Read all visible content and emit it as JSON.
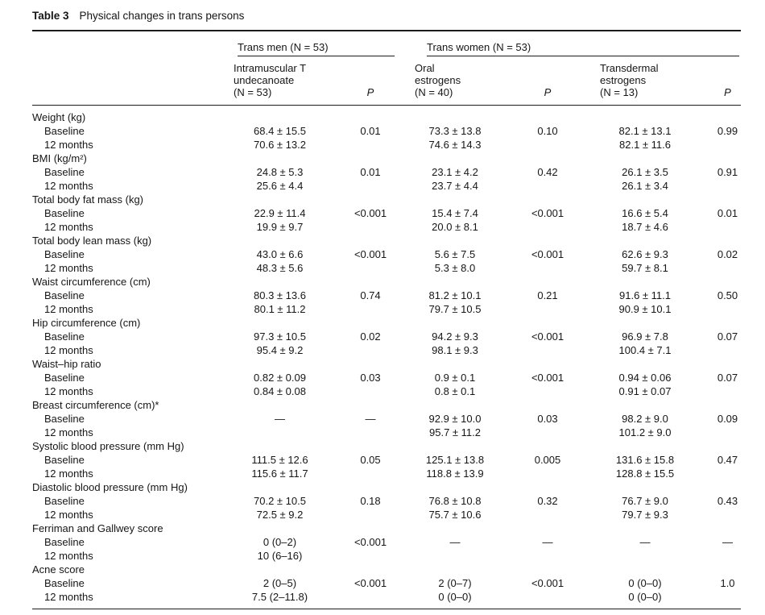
{
  "title": {
    "label": "Table 3",
    "caption": "Physical changes in trans persons"
  },
  "table": {
    "groups": [
      {
        "label": "Trans men (N = 53)"
      },
      {
        "label": "Trans women (N = 53)"
      }
    ],
    "columns": [
      {
        "lines": [
          "Intramuscular T",
          "undecanoate",
          "(N = 53)"
        ]
      },
      {
        "label": "P"
      },
      {
        "lines": [
          "Oral",
          "estrogens",
          "(N = 40)"
        ]
      },
      {
        "label": "P"
      },
      {
        "lines": [
          "Transdermal",
          "estrogens",
          "(N = 13)"
        ]
      },
      {
        "label": "P"
      }
    ],
    "sections": [
      {
        "label": "Weight (kg)",
        "rows": [
          {
            "label": "Baseline",
            "values": [
              "68.4 ± 15.5",
              "0.01",
              "73.3 ± 13.8",
              "0.10",
              "82.1 ± 13.1",
              "0.99"
            ]
          },
          {
            "label": "12 months",
            "values": [
              "70.6 ± 13.2",
              "",
              "74.6 ± 14.3",
              "",
              "82.1 ± 11.6",
              ""
            ]
          }
        ]
      },
      {
        "label": "BMI (kg/m²)",
        "rows": [
          {
            "label": "Baseline",
            "values": [
              "24.8 ± 5.3",
              "0.01",
              "23.1 ± 4.2",
              "0.42",
              "26.1 ± 3.5",
              "0.91"
            ]
          },
          {
            "label": "12 months",
            "values": [
              "25.6 ± 4.4",
              "",
              "23.7 ± 4.4",
              "",
              "26.1 ± 3.4",
              ""
            ]
          }
        ]
      },
      {
        "label": "Total body fat mass (kg)",
        "rows": [
          {
            "label": "Baseline",
            "values": [
              "22.9 ± 11.4",
              "<0.001",
              "15.4 ± 7.4",
              "<0.001",
              "16.6 ± 5.4",
              "0.01"
            ]
          },
          {
            "label": "12 months",
            "values": [
              "19.9 ± 9.7",
              "",
              "20.0 ± 8.1",
              "",
              "18.7 ± 4.6",
              ""
            ]
          }
        ]
      },
      {
        "label": "Total body lean mass (kg)",
        "rows": [
          {
            "label": "Baseline",
            "values": [
              "43.0 ± 6.6",
              "<0.001",
              "5.6 ± 7.5",
              "<0.001",
              "62.6 ± 9.3",
              "0.02"
            ]
          },
          {
            "label": "12 months",
            "values": [
              "48.3 ± 5.6",
              "",
              "5.3 ± 8.0",
              "",
              "59.7 ± 8.1",
              ""
            ]
          }
        ]
      },
      {
        "label": "Waist circumference (cm)",
        "rows": [
          {
            "label": "Baseline",
            "values": [
              "80.3 ± 13.6",
              "0.74",
              "81.2 ± 10.1",
              "0.21",
              "91.6 ± 11.1",
              "0.50"
            ]
          },
          {
            "label": "12 months",
            "values": [
              "80.1 ± 11.2",
              "",
              "79.7 ± 10.5",
              "",
              "90.9 ± 10.1",
              ""
            ]
          }
        ]
      },
      {
        "label": "Hip circumference (cm)",
        "rows": [
          {
            "label": "Baseline",
            "values": [
              "97.3 ± 10.5",
              "0.02",
              "94.2 ± 9.3",
              "<0.001",
              "96.9 ± 7.8",
              "0.07"
            ]
          },
          {
            "label": "12 months",
            "values": [
              "95.4 ± 9.2",
              "",
              "98.1 ± 9.3",
              "",
              "100.4 ± 7.1",
              ""
            ]
          }
        ]
      },
      {
        "label": "Waist–hip ratio",
        "rows": [
          {
            "label": "Baseline",
            "values": [
              "0.82 ± 0.09",
              "0.03",
              "0.9 ± 0.1",
              "<0.001",
              "0.94 ± 0.06",
              "0.07"
            ]
          },
          {
            "label": "12 months",
            "values": [
              "0.84 ± 0.08",
              "",
              "0.8 ± 0.1",
              "",
              "0.91 ± 0.07",
              ""
            ]
          }
        ]
      },
      {
        "label": "Breast circumference (cm)*",
        "rows": [
          {
            "label": "Baseline",
            "values": [
              "—",
              "—",
              "92.9 ± 10.0",
              "0.03",
              "98.2 ± 9.0",
              "0.09"
            ]
          },
          {
            "label": "12 months",
            "values": [
              "",
              "",
              "95.7 ± 11.2",
              "",
              "101.2 ± 9.0",
              ""
            ]
          }
        ]
      },
      {
        "label": "Systolic blood pressure (mm Hg)",
        "rows": [
          {
            "label": "Baseline",
            "values": [
              "111.5 ± 12.6",
              "0.05",
              "125.1 ± 13.8",
              "0.005",
              "131.6 ± 15.8",
              "0.47"
            ]
          },
          {
            "label": "12 months",
            "values": [
              "115.6 ± 11.7",
              "",
              "118.8 ± 13.9",
              "",
              "128.8 ± 15.5",
              ""
            ]
          }
        ]
      },
      {
        "label": "Diastolic blood pressure (mm Hg)",
        "rows": [
          {
            "label": "Baseline",
            "values": [
              "70.2 ± 10.5",
              "0.18",
              "76.8 ± 10.8",
              "0.32",
              "76.7 ± 9.0",
              "0.43"
            ]
          },
          {
            "label": "12 months",
            "values": [
              "72.5 ± 9.2",
              "",
              "75.7 ± 10.6",
              "",
              "79.7 ± 9.3",
              ""
            ]
          }
        ]
      },
      {
        "label": "Ferriman and Gallwey score",
        "rows": [
          {
            "label": "Baseline",
            "values": [
              "0 (0–2)",
              "<0.001",
              "—",
              "—",
              "—",
              "—"
            ]
          },
          {
            "label": "12 months",
            "values": [
              "10 (6–16)",
              "",
              "",
              "",
              "",
              ""
            ]
          }
        ]
      },
      {
        "label": "Acne score",
        "rows": [
          {
            "label": "Baseline",
            "values": [
              "2 (0–5)",
              "<0.001",
              "2 (0–7)",
              "<0.001",
              "0 (0–0)",
              "1.0"
            ]
          },
          {
            "label": "12 months",
            "values": [
              "7.5 (2–11.8)",
              "",
              "0 (0–0)",
              "",
              "0 (0–0)",
              ""
            ]
          }
        ]
      }
    ]
  }
}
